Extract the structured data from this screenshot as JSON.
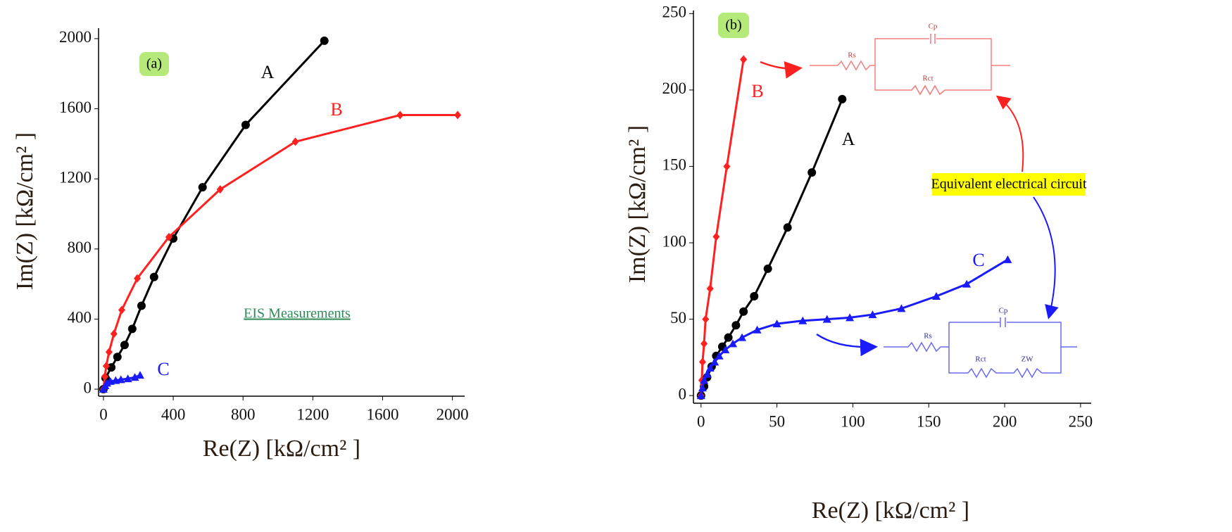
{
  "chart_data": [
    {
      "type": "line",
      "label": "(a)",
      "x_label": "Re(Z) [kΩ/cm² ]",
      "y_label": "Im(Z) [kΩ/cm² ]",
      "annotations": [
        "EIS Measurements"
      ],
      "xlim": [
        -28,
        2070
      ],
      "ylim": [
        -40,
        2060
      ],
      "xticks": [
        0,
        400,
        800,
        1200,
        1600,
        2000
      ],
      "yticks": [
        0,
        400,
        800,
        1200,
        1600,
        2000
      ],
      "series": [
        {
          "name": "A",
          "color": "#000000",
          "marker": "circle",
          "x": [
            0,
            12,
            45,
            80,
            121,
            165,
            218,
            290,
            400,
            568,
            815,
            1266
          ],
          "values": [
            0,
            64,
            124,
            184,
            252,
            344,
            476,
            640,
            860,
            1152,
            1508,
            1988
          ]
        },
        {
          "name": "B",
          "color": "#ff2020",
          "marker": "diamond",
          "x": [
            0,
            8,
            16,
            32,
            60,
            105,
            194,
            375,
            669,
            1100,
            1700,
            2030
          ],
          "values": [
            0,
            72,
            132,
            212,
            316,
            452,
            632,
            868,
            1140,
            1412,
            1564,
            1564
          ]
        },
        {
          "name": "C",
          "color": "#1a1aff",
          "marker": "triangle",
          "x": [
            0,
            10,
            20,
            40,
            70,
            100,
            140,
            180,
            210
          ],
          "values": [
            0,
            20,
            35,
            45,
            50,
            55,
            60,
            68,
            80
          ]
        }
      ]
    },
    {
      "type": "line",
      "label": "(b)",
      "x_label": "Re(Z) [kΩ/cm² ]",
      "y_label": "Im(Z) [kΩ/cm² ]",
      "annotations": [
        "Equivalent electrical circuit"
      ],
      "circuit_labels": [
        "Rs",
        "Cp",
        "Rct",
        "Rs",
        "Cp",
        "Rct",
        "ZW"
      ],
      "xlim": [
        -5,
        257
      ],
      "ylim": [
        -5,
        252
      ],
      "xticks": [
        0,
        50,
        100,
        150,
        200,
        250
      ],
      "yticks": [
        0,
        50,
        100,
        150,
        200,
        250
      ],
      "series": [
        {
          "name": "A",
          "color": "#000000",
          "marker": "circle",
          "x": [
            0,
            2,
            4,
            7,
            10,
            14,
            18,
            23,
            28,
            35,
            44,
            57,
            73,
            93
          ],
          "values": [
            0,
            6,
            12,
            19,
            26,
            32,
            38,
            46,
            55,
            65,
            83,
            110,
            146,
            194
          ]
        },
        {
          "name": "B",
          "color": "#ff2020",
          "marker": "diamond",
          "x": [
            0,
            0.5,
            1,
            2,
            3,
            6,
            10,
            17,
            28
          ],
          "values": [
            0,
            10,
            22,
            34,
            50,
            70,
            104,
            150,
            220
          ]
        },
        {
          "name": "C",
          "color": "#1a1aff",
          "marker": "triangle",
          "x": [
            0,
            1,
            2,
            4,
            6,
            9,
            12,
            16,
            21,
            27,
            37,
            50,
            67,
            83,
            98,
            113,
            132,
            155,
            175,
            202
          ],
          "values": [
            0,
            5,
            10,
            14,
            18,
            22,
            26,
            30,
            34,
            38,
            43,
            47,
            49,
            50,
            51,
            53,
            57,
            65,
            73,
            89
          ]
        }
      ]
    }
  ]
}
